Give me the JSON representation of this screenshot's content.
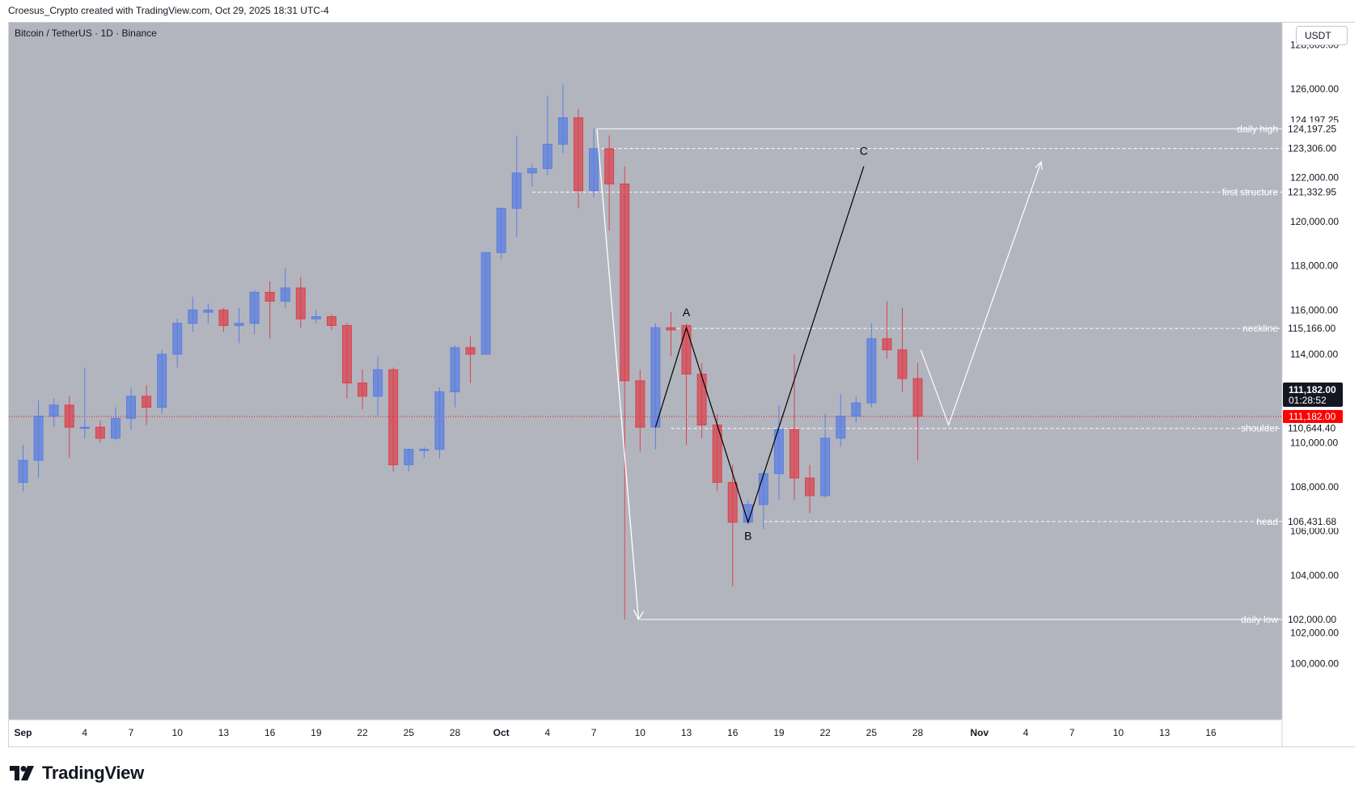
{
  "header": {
    "text": "Croesus_Crypto created with TradingView.com, Oct 29, 2025 18:31 UTC-4"
  },
  "symbol": {
    "text": "Bitcoin / TetherUS · 1D · Binance"
  },
  "currency_button": {
    "label": "USDT"
  },
  "branding": {
    "logo_text": "TradingView"
  },
  "colors": {
    "background": "#b2b5be",
    "bull": "#5b7fe0",
    "bear": "#d9444f",
    "level_line": "#ffffff",
    "abc_line": "#000000",
    "arrow": "#ffffff",
    "current_price": "#ff0000"
  },
  "chart_data": {
    "type": "candlestick",
    "title": "Bitcoin / TetherUS · 1D · Binance",
    "ylim": [
      99000,
      128500
    ],
    "y_ticks": [
      "100,000.00",
      "102,000.00",
      "104,000.00",
      "106,000.00",
      "108,000.00",
      "110,000.00",
      "114,000.00",
      "116,000.00",
      "118,000.00",
      "120,000.00",
      "122,000.00",
      "126,000.00",
      "128,000.00"
    ],
    "x_ticks": [
      {
        "label": "Sep",
        "day": 0
      },
      {
        "label": "4",
        "day": 4
      },
      {
        "label": "7",
        "day": 7
      },
      {
        "label": "10",
        "day": 10
      },
      {
        "label": "13",
        "day": 13
      },
      {
        "label": "16",
        "day": 16
      },
      {
        "label": "19",
        "day": 19
      },
      {
        "label": "22",
        "day": 22
      },
      {
        "label": "25",
        "day": 25
      },
      {
        "label": "28",
        "day": 28
      },
      {
        "label": "Oct",
        "day": 31
      },
      {
        "label": "4",
        "day": 34
      },
      {
        "label": "7",
        "day": 37
      },
      {
        "label": "10",
        "day": 40
      },
      {
        "label": "13",
        "day": 43
      },
      {
        "label": "16",
        "day": 46
      },
      {
        "label": "19",
        "day": 49
      },
      {
        "label": "22",
        "day": 52
      },
      {
        "label": "25",
        "day": 55
      },
      {
        "label": "28",
        "day": 58
      },
      {
        "label": "Nov",
        "day": 62
      },
      {
        "label": "4",
        "day": 65
      },
      {
        "label": "7",
        "day": 68
      },
      {
        "label": "10",
        "day": 71
      },
      {
        "label": "13",
        "day": 74
      },
      {
        "label": "16",
        "day": 77
      }
    ],
    "candles": [
      {
        "date": "Sep 1",
        "o": 108200,
        "h": 109900,
        "l": 107800,
        "c": 109200
      },
      {
        "date": "Sep 2",
        "o": 109200,
        "h": 111900,
        "l": 108400,
        "c": 111200
      },
      {
        "date": "Sep 3",
        "o": 111200,
        "h": 112000,
        "l": 110700,
        "c": 111700
      },
      {
        "date": "Sep 4",
        "o": 111700,
        "h": 112100,
        "l": 109300,
        "c": 110700
      },
      {
        "date": "Sep 5",
        "o": 110700,
        "h": 113400,
        "l": 110200,
        "c": 110700
      },
      {
        "date": "Sep 6",
        "o": 110700,
        "h": 111000,
        "l": 110000,
        "c": 110200
      },
      {
        "date": "Sep 7",
        "o": 110200,
        "h": 111600,
        "l": 110100,
        "c": 111100
      },
      {
        "date": "Sep 8",
        "o": 111100,
        "h": 112500,
        "l": 110600,
        "c": 112100
      },
      {
        "date": "Sep 9",
        "o": 112100,
        "h": 112600,
        "l": 110800,
        "c": 111600
      },
      {
        "date": "Sep 10",
        "o": 111600,
        "h": 114200,
        "l": 111300,
        "c": 114000
      },
      {
        "date": "Sep 11",
        "o": 114000,
        "h": 115600,
        "l": 113400,
        "c": 115400
      },
      {
        "date": "Sep 12",
        "o": 115400,
        "h": 116600,
        "l": 115000,
        "c": 116000
      },
      {
        "date": "Sep 13",
        "o": 115900,
        "h": 116300,
        "l": 115400,
        "c": 116000
      },
      {
        "date": "Sep 14",
        "o": 116000,
        "h": 116100,
        "l": 115000,
        "c": 115300
      },
      {
        "date": "Sep 15",
        "o": 115300,
        "h": 116100,
        "l": 114500,
        "c": 115400
      },
      {
        "date": "Sep 16",
        "o": 115400,
        "h": 116900,
        "l": 114900,
        "c": 116800
      },
      {
        "date": "Sep 17",
        "o": 116800,
        "h": 117300,
        "l": 114700,
        "c": 116400
      },
      {
        "date": "Sep 18",
        "o": 116400,
        "h": 117900,
        "l": 116100,
        "c": 117000
      },
      {
        "date": "Sep 19",
        "o": 117000,
        "h": 117500,
        "l": 115200,
        "c": 115600
      },
      {
        "date": "Sep 20",
        "o": 115600,
        "h": 116000,
        "l": 115400,
        "c": 115700
      },
      {
        "date": "Sep 21",
        "o": 115700,
        "h": 115800,
        "l": 115100,
        "c": 115300
      },
      {
        "date": "Sep 22",
        "o": 115300,
        "h": 115400,
        "l": 112000,
        "c": 112700
      },
      {
        "date": "Sep 23",
        "o": 112700,
        "h": 113300,
        "l": 111500,
        "c": 112100
      },
      {
        "date": "Sep 24",
        "o": 112100,
        "h": 113900,
        "l": 111200,
        "c": 113300
      },
      {
        "date": "Sep 25",
        "o": 113300,
        "h": 113400,
        "l": 108700,
        "c": 109000
      },
      {
        "date": "Sep 26",
        "o": 109000,
        "h": 109700,
        "l": 108700,
        "c": 109700
      },
      {
        "date": "Sep 27",
        "o": 109700,
        "h": 109800,
        "l": 109300,
        "c": 109700
      },
      {
        "date": "Sep 28",
        "o": 109700,
        "h": 112500,
        "l": 109300,
        "c": 112300
      },
      {
        "date": "Sep 29",
        "o": 112300,
        "h": 114400,
        "l": 111600,
        "c": 114300
      },
      {
        "date": "Sep 30",
        "o": 114300,
        "h": 114800,
        "l": 112700,
        "c": 114000
      },
      {
        "date": "Oct 1",
        "o": 114000,
        "h": 118600,
        "l": 114000,
        "c": 118600
      },
      {
        "date": "Oct 2",
        "o": 118600,
        "h": 120600,
        "l": 118300,
        "c": 120600
      },
      {
        "date": "Oct 3",
        "o": 120600,
        "h": 123900,
        "l": 119300,
        "c": 122200
      },
      {
        "date": "Oct 4",
        "o": 122200,
        "h": 122600,
        "l": 121600,
        "c": 122400
      },
      {
        "date": "Oct 5",
        "o": 122400,
        "h": 125700,
        "l": 122100,
        "c": 123500
      },
      {
        "date": "Oct 6",
        "o": 123500,
        "h": 126200,
        "l": 123100,
        "c": 124700
      },
      {
        "date": "Oct 7",
        "o": 124700,
        "h": 125100,
        "l": 120600,
        "c": 121400
      },
      {
        "date": "Oct 8",
        "o": 121400,
        "h": 124200,
        "l": 121100,
        "c": 123300
      },
      {
        "date": "Oct 9",
        "o": 123300,
        "h": 123900,
        "l": 119600,
        "c": 121700
      },
      {
        "date": "Oct 10",
        "o": 121700,
        "h": 122500,
        "l": 102000,
        "c": 112800
      },
      {
        "date": "Oct 11",
        "o": 112800,
        "h": 113300,
        "l": 109600,
        "c": 110700
      },
      {
        "date": "Oct 12",
        "o": 110700,
        "h": 115400,
        "l": 109700,
        "c": 115200
      },
      {
        "date": "Oct 13",
        "o": 115200,
        "h": 115900,
        "l": 113900,
        "c": 115100
      },
      {
        "date": "Oct 14",
        "o": 115300,
        "h": 115400,
        "l": 109900,
        "c": 113100
      },
      {
        "date": "Oct 15",
        "o": 113100,
        "h": 113600,
        "l": 110200,
        "c": 110800
      },
      {
        "date": "Oct 16",
        "o": 110800,
        "h": 111300,
        "l": 107800,
        "c": 108200
      },
      {
        "date": "Oct 17",
        "o": 108200,
        "h": 109000,
        "l": 103500,
        "c": 106400
      },
      {
        "date": "Oct 18",
        "o": 106400,
        "h": 107400,
        "l": 106300,
        "c": 107200
      },
      {
        "date": "Oct 19",
        "o": 107200,
        "h": 108700,
        "l": 106100,
        "c": 108600
      },
      {
        "date": "Oct 20",
        "o": 108600,
        "h": 111700,
        "l": 107400,
        "c": 110600
      },
      {
        "date": "Oct 21",
        "o": 110600,
        "h": 114000,
        "l": 107400,
        "c": 108400
      },
      {
        "date": "Oct 22",
        "o": 108400,
        "h": 109000,
        "l": 106800,
        "c": 107600
      },
      {
        "date": "Oct 23",
        "o": 107600,
        "h": 111300,
        "l": 107500,
        "c": 110200
      },
      {
        "date": "Oct 24",
        "o": 110200,
        "h": 112200,
        "l": 109800,
        "c": 111200
      },
      {
        "date": "Oct 25",
        "o": 111200,
        "h": 112100,
        "l": 110900,
        "c": 111800
      },
      {
        "date": "Oct 26",
        "o": 111800,
        "h": 115400,
        "l": 111600,
        "c": 114700
      },
      {
        "date": "Oct 27",
        "o": 114700,
        "h": 116400,
        "l": 113800,
        "c": 114200
      },
      {
        "date": "Oct 28",
        "o": 114200,
        "h": 116100,
        "l": 112300,
        "c": 112900
      },
      {
        "date": "Oct 29",
        "o": 112900,
        "h": 113600,
        "l": 109200,
        "c": 111200
      }
    ],
    "levels": [
      {
        "label": "daily high",
        "price": 124197.25,
        "price_label": "124,197.25",
        "from_day": 37.2,
        "style": "solid"
      },
      {
        "label": "",
        "price": 123306.0,
        "price_label": "123,306.00",
        "from_day": 37.5,
        "style": "dashed"
      },
      {
        "label": "first structure",
        "price": 121332.95,
        "price_label": "121,332.95",
        "from_day": 33,
        "style": "dashed"
      },
      {
        "label": "neckline",
        "price": 115166.0,
        "price_label": "115,166.00",
        "from_day": 42,
        "style": "dashed"
      },
      {
        "label": "shoulder",
        "price": 110644.4,
        "price_label": "110,644.40",
        "from_day": 42,
        "style": "dashed"
      },
      {
        "label": "head",
        "price": 106431.68,
        "price_label": "106,431.68",
        "from_day": 48,
        "style": "dashed"
      },
      {
        "label": "daily low",
        "price": 102000.0,
        "price_label": "102,000.00",
        "from_day": 40,
        "style": "solid"
      }
    ],
    "abc_pattern": [
      {
        "label": "",
        "day": 41,
        "price": 110700
      },
      {
        "label": "A",
        "day": 43,
        "price": 115200
      },
      {
        "label": "B",
        "day": 47,
        "price": 106400
      },
      {
        "label": "C",
        "day": 54.5,
        "price": 122500
      }
    ],
    "projection_arrow": [
      {
        "day": 58.2,
        "price": 114200
      },
      {
        "day": 60,
        "price": 110800
      },
      {
        "day": 66,
        "price": 122700
      }
    ],
    "drop_arrow": [
      {
        "day": 37.2,
        "price": 124197.25
      },
      {
        "day": 39.9,
        "price": 102000
      }
    ],
    "extra_axis_labels": [
      {
        "text": "124,197.25",
        "price": 124600
      },
      {
        "text": "102,000.00",
        "price": 101400
      }
    ],
    "current_price": {
      "price": 111182,
      "label": "111,182.00",
      "black_tag_price": "111,182.00",
      "countdown": "01:28:52"
    }
  }
}
